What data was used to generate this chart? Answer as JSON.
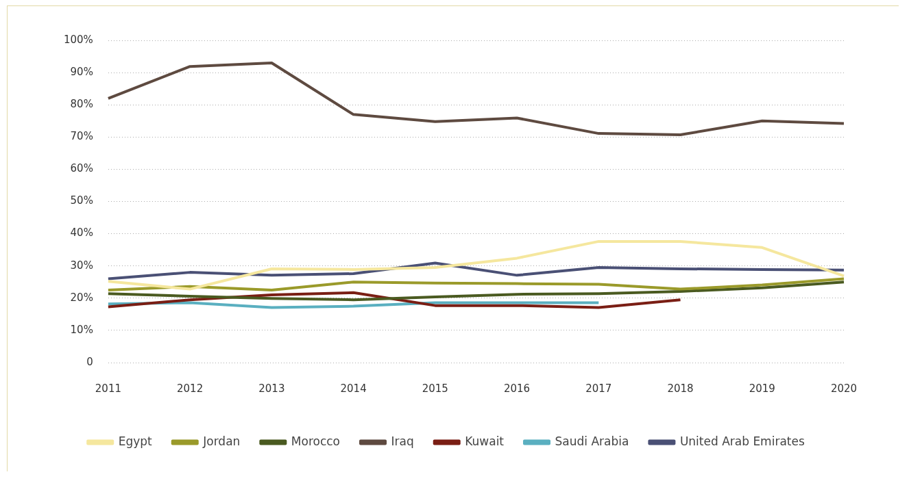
{
  "chart_data": {
    "type": "line",
    "categories": [
      "2011",
      "2012",
      "2013",
      "2014",
      "2015",
      "2016",
      "2017",
      "2018",
      "2019",
      "2020"
    ],
    "series": [
      {
        "name": "Egypt",
        "color": "#f5e79e",
        "values": [
          25.2,
          22.8,
          29.1,
          28.9,
          29.5,
          32.4,
          37.6,
          37.6,
          35.7,
          26.9
        ]
      },
      {
        "name": "Jordan",
        "color": "#9a9a2a",
        "values": [
          22.5,
          23.6,
          22.5,
          25,
          24.7,
          24.5,
          24.3,
          22.8,
          24.1,
          26
        ]
      },
      {
        "name": "Morocco",
        "color": "#4a5a20",
        "values": [
          21.4,
          20.6,
          19.9,
          19.5,
          20.4,
          21.2,
          21.4,
          22.1,
          23.2,
          25
        ]
      },
      {
        "name": "Iraq",
        "color": "#5e4a40",
        "values": [
          82,
          91.9,
          93,
          77,
          74.8,
          75.9,
          71.1,
          70.7,
          75,
          74.2
        ]
      },
      {
        "name": "Kuwait",
        "color": "#7a1e14",
        "values": [
          17.3,
          19.5,
          21,
          21.7,
          17.7,
          17.7,
          17.1,
          19.5,
          null,
          null
        ]
      },
      {
        "name": "Saudi Arabia",
        "color": "#5aafc0",
        "values": [
          18.2,
          18.6,
          17.1,
          17.5,
          18.6,
          18.6,
          18.6,
          null,
          null,
          null
        ]
      },
      {
        "name": "United Arab Emirates",
        "color": "#4a5075",
        "values": [
          26,
          28,
          27.1,
          27.6,
          30.9,
          27.1,
          29.5,
          29.1,
          28.9,
          28.7
        ]
      }
    ],
    "ylim": [
      0,
      100
    ],
    "yticks": [
      0,
      {
        "value": 10,
        "label": "10%"
      },
      {
        "value": 20,
        "label": "20%"
      },
      {
        "value": 30,
        "label": "30%"
      },
      {
        "value": 40,
        "label": "40%"
      },
      {
        "value": 50,
        "label": "50%"
      },
      {
        "value": 60,
        "label": "60%"
      },
      {
        "value": 70,
        "label": "70%"
      },
      {
        "value": 80,
        "label": "80%"
      },
      {
        "value": 90,
        "label": "90%"
      },
      {
        "value": 100,
        "label": "100%"
      }
    ],
    "grid": "y",
    "legend": "bottom",
    "marker": "none",
    "line_style": "solid"
  }
}
